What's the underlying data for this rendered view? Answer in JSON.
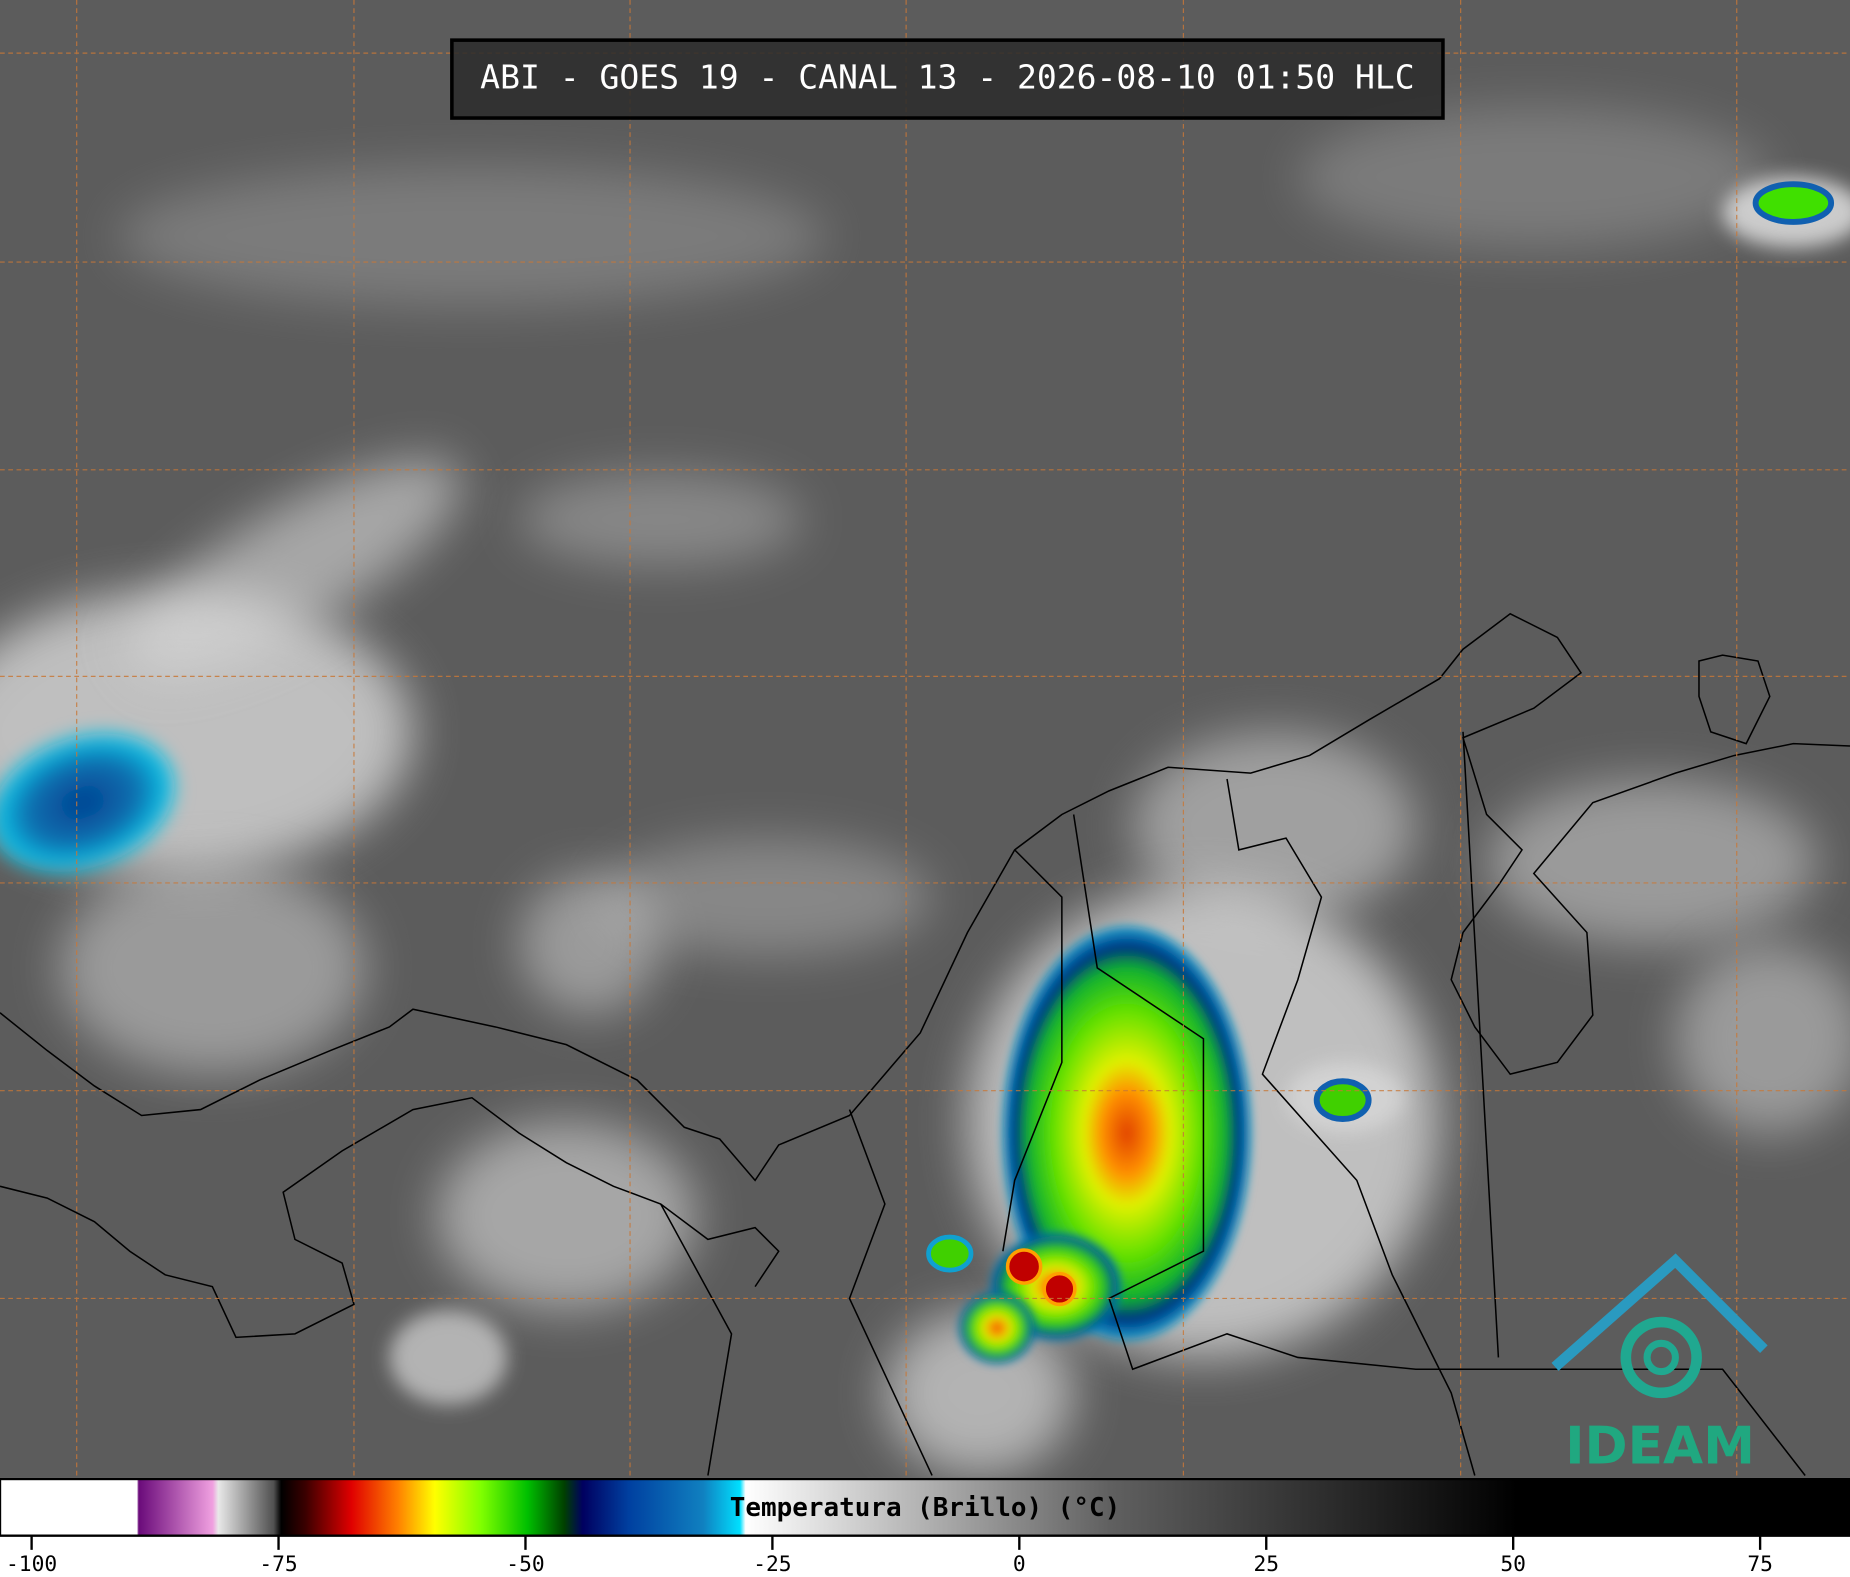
{
  "header": {
    "title": "ABI - GOES 19 - CANAL 13 - 2026-08-10 01:50 HLC"
  },
  "logo": {
    "text": "IDEAM"
  },
  "chart_data": {
    "type": "colorbar",
    "title": "Temperatura (Brillo) (°C)",
    "xlim": [
      -103.2,
      84.1
    ],
    "xticks": [
      -100,
      -75,
      -50,
      -25,
      0,
      25,
      50,
      75
    ]
  }
}
